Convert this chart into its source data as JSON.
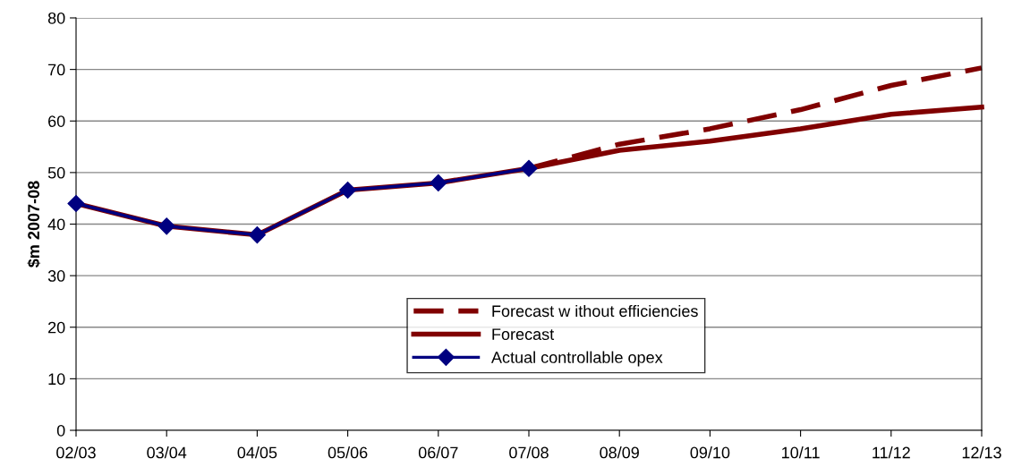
{
  "chart_data": {
    "type": "line",
    "ylabel": "$m 2007-08",
    "categories": [
      "02/03",
      "03/04",
      "04/05",
      "05/06",
      "06/07",
      "07/08",
      "08/09",
      "09/10",
      "10/11",
      "11/12",
      "12/13"
    ],
    "series": [
      {
        "name": "Forecast w ithout efficiencies",
        "color": "#800000",
        "line_style": "dashed",
        "marker": "none",
        "values": [
          null,
          null,
          null,
          null,
          null,
          50.8,
          55.5,
          58.5,
          62.2,
          66.9,
          70.3
        ]
      },
      {
        "name": "Forecast",
        "color": "#800000",
        "line_style": "solid",
        "marker": "none",
        "values": [
          44.0,
          39.6,
          37.9,
          46.6,
          48.0,
          50.8,
          54.3,
          56.1,
          58.5,
          61.3,
          62.7
        ]
      },
      {
        "name": "Actual controllable opex",
        "color": "#000080",
        "line_style": "solid",
        "marker": "diamond",
        "values": [
          44.0,
          39.6,
          37.9,
          46.6,
          48.0,
          50.8,
          null,
          null,
          null,
          null,
          null
        ]
      }
    ],
    "ylim": [
      0,
      80
    ],
    "yticks": [
      0,
      10,
      20,
      30,
      40,
      50,
      60,
      70,
      80
    ],
    "grid": "y",
    "legend": "bottom"
  }
}
